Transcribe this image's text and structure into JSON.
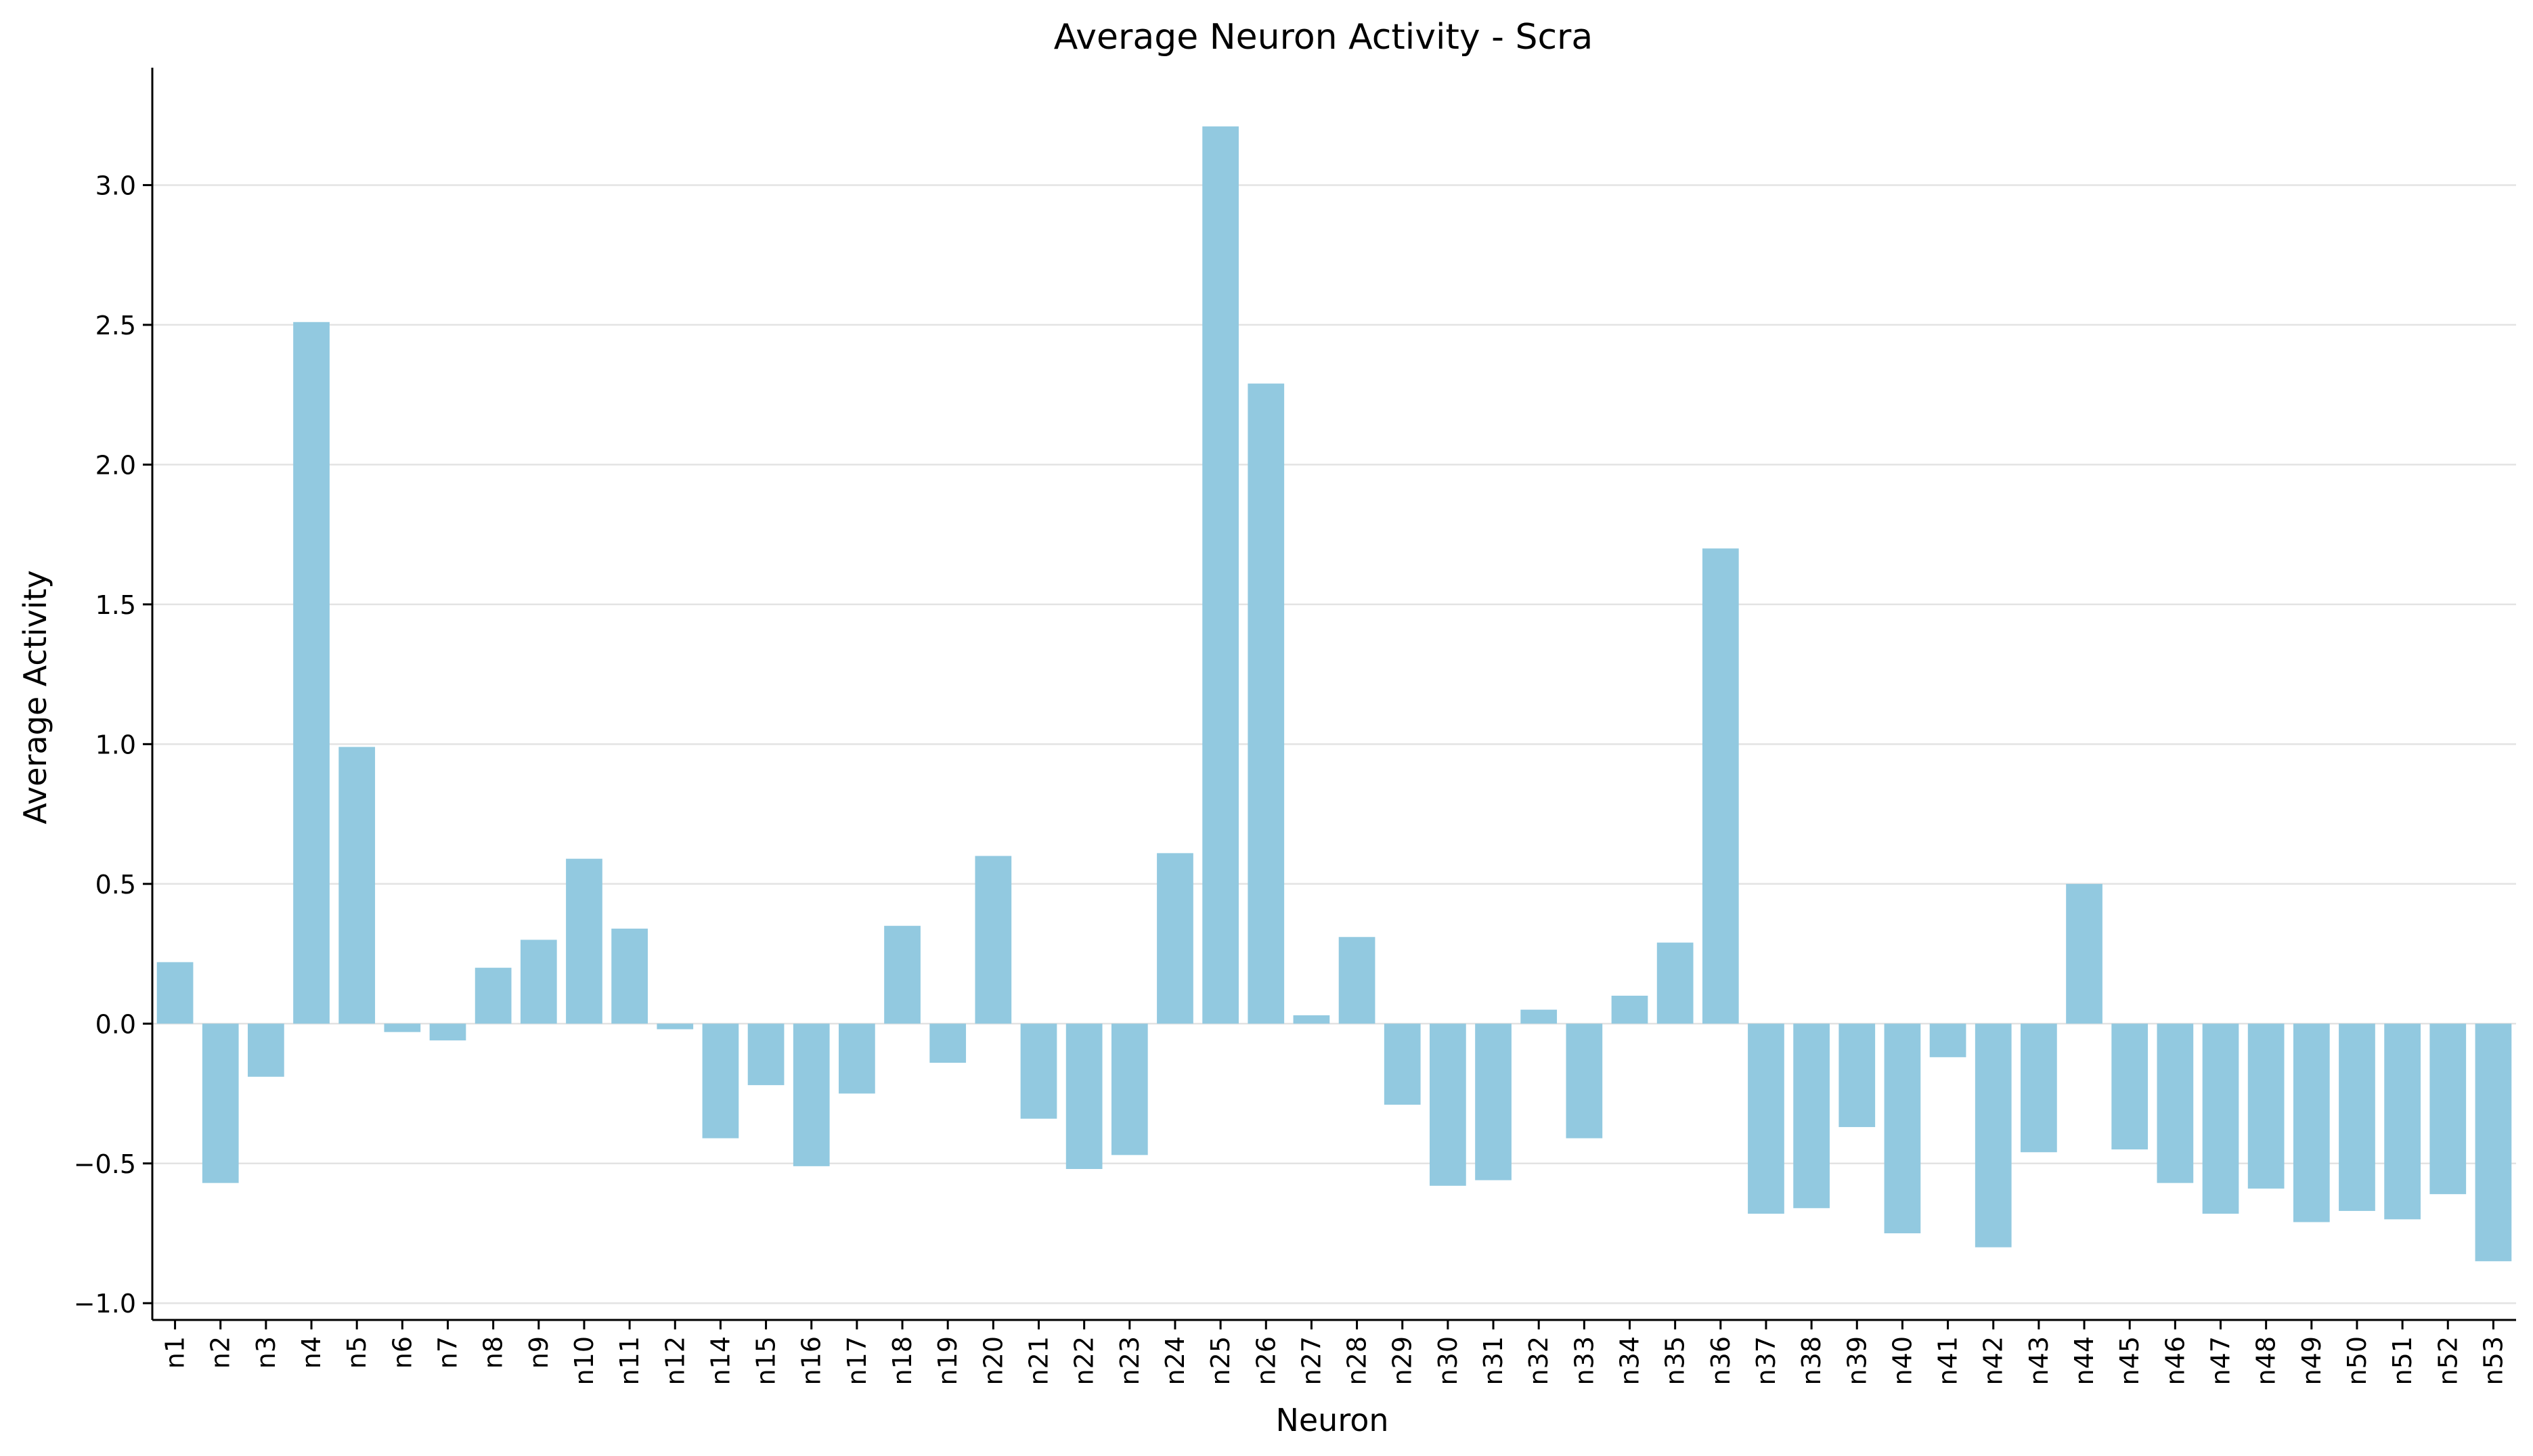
{
  "chart_data": {
    "type": "bar",
    "title": "Average Neuron Activity - Scra",
    "xlabel": "Neuron",
    "ylabel": "Average Activity",
    "ylim": [
      -1.06,
      3.42
    ],
    "yticks": [
      -1.0,
      -0.5,
      0.0,
      0.5,
      1.0,
      1.5,
      2.0,
      2.5,
      3.0
    ],
    "ytick_labels": [
      "−1.0",
      "−0.5",
      "0.0",
      "0.5",
      "1.0",
      "1.5",
      "2.0",
      "2.5",
      "3.0"
    ],
    "grid": "horizontal",
    "bar_color": "#92c9e0",
    "categories": [
      "n1",
      "n2",
      "n3",
      "n4",
      "n5",
      "n6",
      "n7",
      "n8",
      "n9",
      "n10",
      "n11",
      "n12",
      "n14",
      "n15",
      "n16",
      "n17",
      "n18",
      "n19",
      "n20",
      "n21",
      "n22",
      "n23",
      "n24",
      "n25",
      "n26",
      "n27",
      "n28",
      "n29",
      "n30",
      "n31",
      "n32",
      "n33",
      "n34",
      "n35",
      "n36",
      "n37",
      "n38",
      "n39",
      "n40",
      "n41",
      "n42",
      "n43",
      "n44",
      "n45",
      "n46",
      "n47",
      "n48",
      "n49",
      "n50",
      "n51",
      "n52",
      "n53"
    ],
    "values": [
      0.22,
      -0.57,
      -0.19,
      2.51,
      0.99,
      -0.03,
      -0.06,
      0.2,
      0.3,
      0.59,
      0.34,
      -0.02,
      -0.41,
      -0.22,
      -0.51,
      -0.25,
      0.35,
      -0.14,
      0.6,
      -0.34,
      -0.52,
      -0.47,
      0.61,
      3.21,
      2.29,
      0.03,
      0.31,
      -0.29,
      -0.58,
      -0.56,
      0.05,
      -0.41,
      0.1,
      0.29,
      1.7,
      -0.68,
      -0.66,
      -0.37,
      -0.75,
      -0.12,
      -0.8,
      -0.46,
      0.5,
      -0.45,
      -0.57,
      -0.68,
      -0.59,
      -0.71,
      -0.67,
      -0.7,
      -0.61,
      -0.85
    ]
  }
}
